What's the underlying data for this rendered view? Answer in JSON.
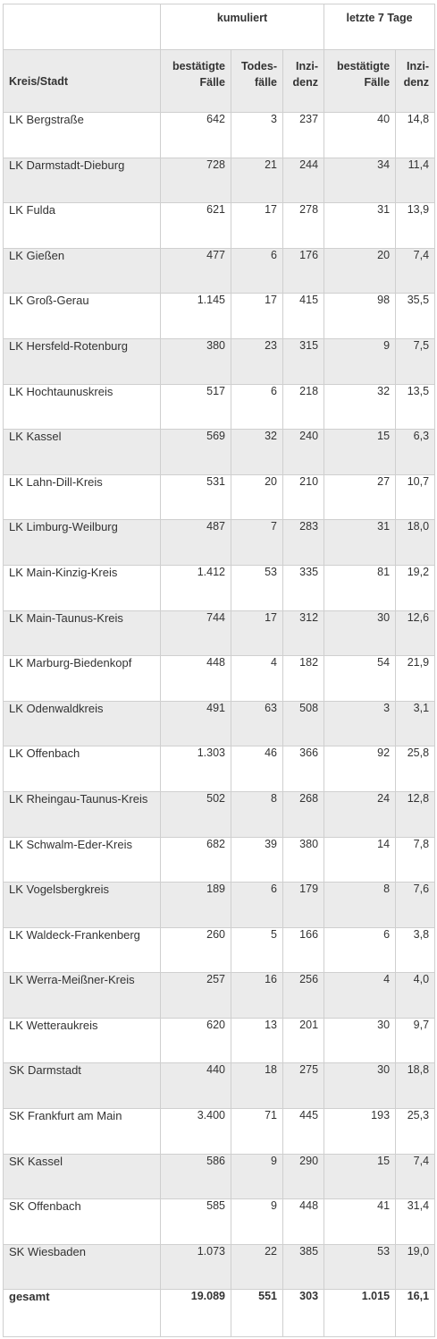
{
  "table": {
    "group_headers": {
      "cumulative": "kumuliert",
      "last7": "letzte 7 Tage"
    },
    "columns": {
      "region": "Kreis/Stadt",
      "confirmed_l1": "bestätigte",
      "confirmed_l2": "Fälle",
      "deaths_l1": "Todes-",
      "deaths_l2": "fälle",
      "incidence_l1": "Inzi-",
      "incidence_l2": "denz",
      "confirmed7_l1": "bestätigte",
      "confirmed7_l2": "Fälle",
      "incidence7_l1": "Inzi-",
      "incidence7_l2": "denz"
    },
    "rows": [
      [
        "LK Bergstraße",
        "642",
        "3",
        "237",
        "40",
        "14,8"
      ],
      [
        "LK Darmstadt-Dieburg",
        "728",
        "21",
        "244",
        "34",
        "11,4"
      ],
      [
        "LK Fulda",
        "621",
        "17",
        "278",
        "31",
        "13,9"
      ],
      [
        "LK Gießen",
        "477",
        "6",
        "176",
        "20",
        "7,4"
      ],
      [
        "LK Groß-Gerau",
        "1.145",
        "17",
        "415",
        "98",
        "35,5"
      ],
      [
        "LK Hersfeld-Rotenburg",
        "380",
        "23",
        "315",
        "9",
        "7,5"
      ],
      [
        "LK Hochtaunuskreis",
        "517",
        "6",
        "218",
        "32",
        "13,5"
      ],
      [
        "LK Kassel",
        "569",
        "32",
        "240",
        "15",
        "6,3"
      ],
      [
        "LK Lahn-Dill-Kreis",
        "531",
        "20",
        "210",
        "27",
        "10,7"
      ],
      [
        "LK Limburg-Weilburg",
        "487",
        "7",
        "283",
        "31",
        "18,0"
      ],
      [
        "LK Main-Kinzig-Kreis",
        "1.412",
        "53",
        "335",
        "81",
        "19,2"
      ],
      [
        "LK Main-Taunus-Kreis",
        "744",
        "17",
        "312",
        "30",
        "12,6"
      ],
      [
        "LK Marburg-Biedenkopf",
        "448",
        "4",
        "182",
        "54",
        "21,9"
      ],
      [
        "LK Odenwaldkreis",
        "491",
        "63",
        "508",
        "3",
        "3,1"
      ],
      [
        "LK Offenbach",
        "1.303",
        "46",
        "366",
        "92",
        "25,8"
      ],
      [
        "LK Rheingau-Taunus-Kreis",
        "502",
        "8",
        "268",
        "24",
        "12,8"
      ],
      [
        "LK Schwalm-Eder-Kreis",
        "682",
        "39",
        "380",
        "14",
        "7,8"
      ],
      [
        "LK Vogelsbergkreis",
        "189",
        "6",
        "179",
        "8",
        "7,6"
      ],
      [
        "LK Waldeck-Frankenberg",
        "260",
        "5",
        "166",
        "6",
        "3,8"
      ],
      [
        "LK Werra-Meißner-Kreis",
        "257",
        "16",
        "256",
        "4",
        "4,0"
      ],
      [
        "LK Wetteraukreis",
        "620",
        "13",
        "201",
        "30",
        "9,7"
      ],
      [
        "SK Darmstadt",
        "440",
        "18",
        "275",
        "30",
        "18,8"
      ],
      [
        "SK Frankfurt am Main",
        "3.400",
        "71",
        "445",
        "193",
        "25,3"
      ],
      [
        "SK Kassel",
        "586",
        "9",
        "290",
        "15",
        "7,4"
      ],
      [
        "SK Offenbach",
        "585",
        "9",
        "448",
        "41",
        "31,4"
      ],
      [
        "SK Wiesbaden",
        "1.073",
        "22",
        "385",
        "53",
        "19,0"
      ]
    ],
    "total": [
      "gesamt",
      "19.089",
      "551",
      "303",
      "1.015",
      "16,1"
    ]
  }
}
